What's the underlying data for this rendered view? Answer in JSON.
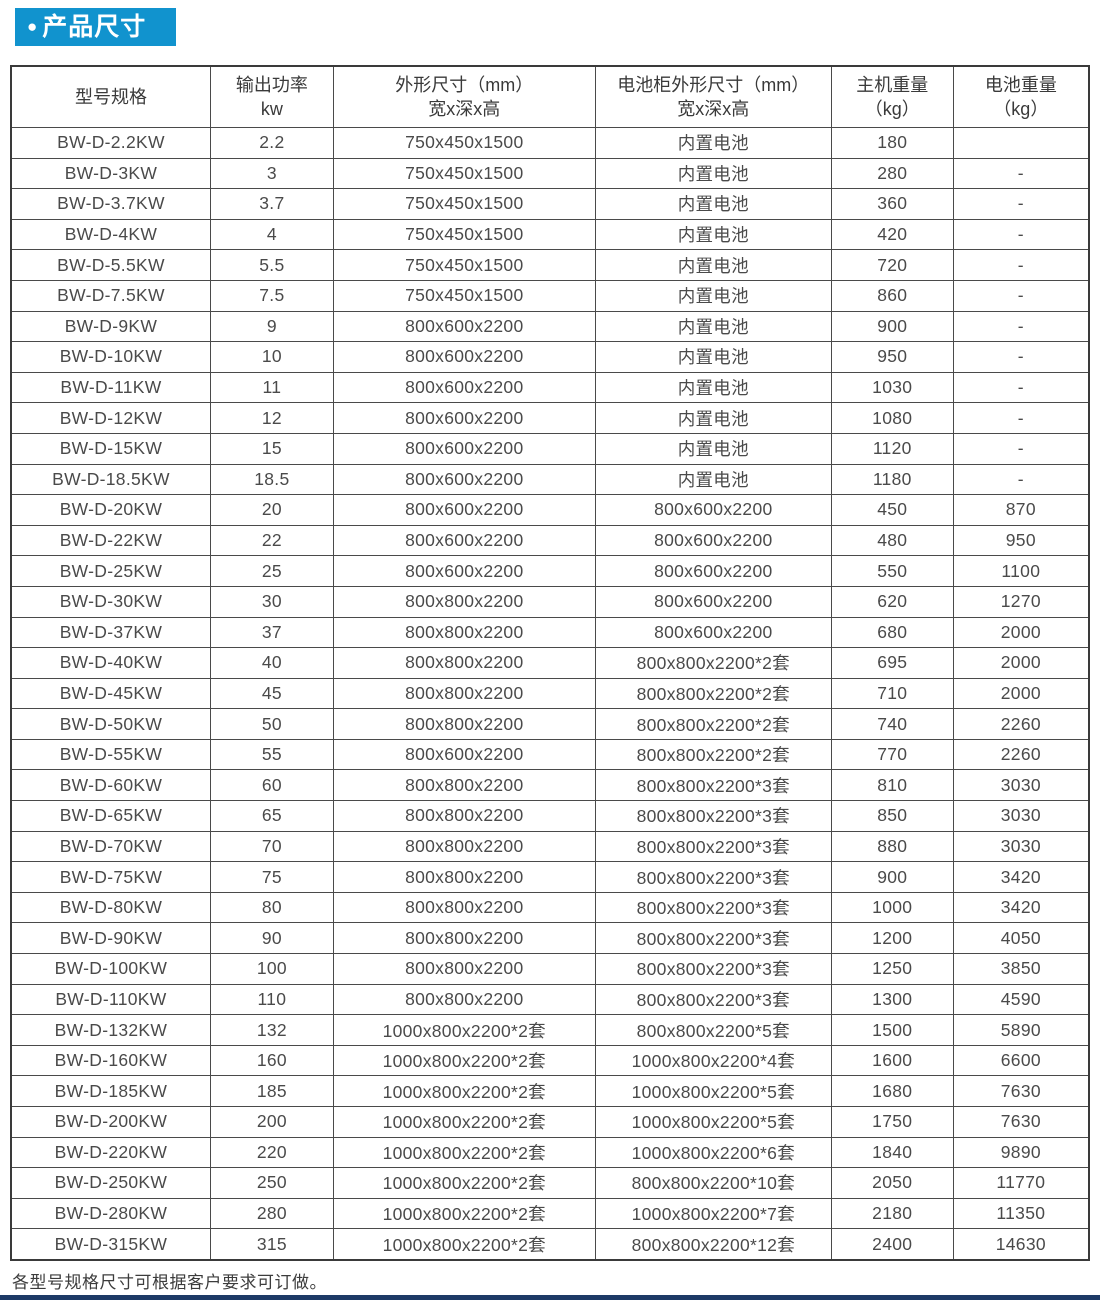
{
  "page": {
    "bullet": "●",
    "section_title": "产品尺寸",
    "footnote": "各型号规格尺寸可根据客户要求可订做。"
  },
  "colors": {
    "accent_blue": "#1193ce",
    "bottom_rule_navy": "#1d3a66",
    "table_border": "#4a4a4a",
    "text": "#3d3d3d"
  },
  "table": {
    "headers": [
      {
        "line1": "型号规格",
        "line2": ""
      },
      {
        "line1": "输出功率",
        "line2": "kw"
      },
      {
        "line1": "外形尺寸（mm）",
        "line2": "宽x深x高"
      },
      {
        "line1": "电池柜外形尺寸（mm）",
        "line2": "宽x深x高"
      },
      {
        "line1": "主机重量",
        "line2": "（kg）"
      },
      {
        "line1": "电池重量",
        "line2": "（kg）"
      }
    ],
    "rows": [
      [
        "BW-D-2.2KW",
        "2.2",
        "750x450x1500",
        "内置电池",
        "180",
        ""
      ],
      [
        "BW-D-3KW",
        "3",
        "750x450x1500",
        "内置电池",
        "280",
        "-"
      ],
      [
        "BW-D-3.7KW",
        "3.7",
        "750x450x1500",
        "内置电池",
        "360",
        "-"
      ],
      [
        "BW-D-4KW",
        "4",
        "750x450x1500",
        "内置电池",
        "420",
        "-"
      ],
      [
        "BW-D-5.5KW",
        "5.5",
        "750x450x1500",
        "内置电池",
        "720",
        "-"
      ],
      [
        "BW-D-7.5KW",
        "7.5",
        "750x450x1500",
        "内置电池",
        "860",
        "-"
      ],
      [
        "BW-D-9KW",
        "9",
        "800x600x2200",
        "内置电池",
        "900",
        "-"
      ],
      [
        "BW-D-10KW",
        "10",
        "800x600x2200",
        "内置电池",
        "950",
        "-"
      ],
      [
        "BW-D-11KW",
        "11",
        "800x600x2200",
        "内置电池",
        "1030",
        "-"
      ],
      [
        "BW-D-12KW",
        "12",
        "800x600x2200",
        "内置电池",
        "1080",
        "-"
      ],
      [
        "BW-D-15KW",
        "15",
        "800x600x2200",
        "内置电池",
        "1120",
        "-"
      ],
      [
        "BW-D-18.5KW",
        "18.5",
        "800x600x2200",
        "内置电池",
        "1180",
        "-"
      ],
      [
        "BW-D-20KW",
        "20",
        "800x600x2200",
        "800x600x2200",
        "450",
        "870"
      ],
      [
        "BW-D-22KW",
        "22",
        "800x600x2200",
        "800x600x2200",
        "480",
        "950"
      ],
      [
        "BW-D-25KW",
        "25",
        "800x600x2200",
        "800x600x2200",
        "550",
        "1100"
      ],
      [
        "BW-D-30KW",
        "30",
        "800x800x2200",
        "800x600x2200",
        "620",
        "1270"
      ],
      [
        "BW-D-37KW",
        "37",
        "800x800x2200",
        "800x600x2200",
        "680",
        "2000"
      ],
      [
        "BW-D-40KW",
        "40",
        "800x800x2200",
        "800x800x2200*2套",
        "695",
        "2000"
      ],
      [
        "BW-D-45KW",
        "45",
        "800x800x2200",
        "800x800x2200*2套",
        "710",
        "2000"
      ],
      [
        "BW-D-50KW",
        "50",
        "800x800x2200",
        "800x800x2200*2套",
        "740",
        "2260"
      ],
      [
        "BW-D-55KW",
        "55",
        "800x600x2200",
        "800x800x2200*2套",
        "770",
        "2260"
      ],
      [
        "BW-D-60KW",
        "60",
        "800x800x2200",
        "800x800x2200*3套",
        "810",
        "3030"
      ],
      [
        "BW-D-65KW",
        "65",
        "800x800x2200",
        "800x800x2200*3套",
        "850",
        "3030"
      ],
      [
        "BW-D-70KW",
        "70",
        "800x800x2200",
        "800x800x2200*3套",
        "880",
        "3030"
      ],
      [
        "BW-D-75KW",
        "75",
        "800x800x2200",
        "800x800x2200*3套",
        "900",
        "3420"
      ],
      [
        "BW-D-80KW",
        "80",
        "800x800x2200",
        "800x800x2200*3套",
        "1000",
        "3420"
      ],
      [
        "BW-D-90KW",
        "90",
        "800x800x2200",
        "800x800x2200*3套",
        "1200",
        "4050"
      ],
      [
        "BW-D-100KW",
        "100",
        "800x800x2200",
        "800x800x2200*3套",
        "1250",
        "3850"
      ],
      [
        "BW-D-110KW",
        "110",
        "800x800x2200",
        "800x800x2200*3套",
        "1300",
        "4590"
      ],
      [
        "BW-D-132KW",
        "132",
        "1000x800x2200*2套",
        "800x800x2200*5套",
        "1500",
        "5890"
      ],
      [
        "BW-D-160KW",
        "160",
        "1000x800x2200*2套",
        "1000x800x2200*4套",
        "1600",
        "6600"
      ],
      [
        "BW-D-185KW",
        "185",
        "1000x800x2200*2套",
        "1000x800x2200*5套",
        "1680",
        "7630"
      ],
      [
        "BW-D-200KW",
        "200",
        "1000x800x2200*2套",
        "1000x800x2200*5套",
        "1750",
        "7630"
      ],
      [
        "BW-D-220KW",
        "220",
        "1000x800x2200*2套",
        "1000x800x2200*6套",
        "1840",
        "9890"
      ],
      [
        "BW-D-250KW",
        "250",
        "1000x800x2200*2套",
        "800x800x2200*10套",
        "2050",
        "11770"
      ],
      [
        "BW-D-280KW",
        "280",
        "1000x800x2200*2套",
        "1000x800x2200*7套",
        "2180",
        "11350"
      ],
      [
        "BW-D-315KW",
        "315",
        "1000x800x2200*2套",
        "800x800x2200*12套",
        "2400",
        "14630"
      ]
    ]
  }
}
